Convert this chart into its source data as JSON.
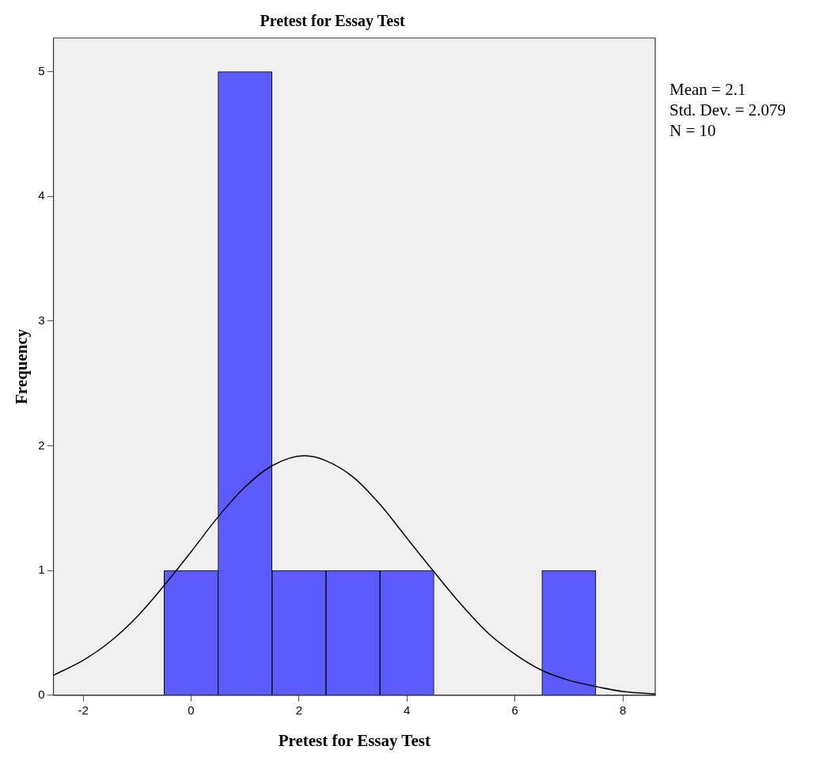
{
  "chart_data": {
    "type": "histogram",
    "title": "Pretest for Essay Test",
    "xlabel": "Pretest for Essay Test",
    "ylabel": "Frequency",
    "bins": [
      -0.5,
      0.5,
      1.5,
      2.5,
      3.5,
      4.5,
      5.5,
      6.5,
      7.5
    ],
    "values": [
      1,
      5,
      1,
      1,
      1,
      0,
      0,
      1
    ],
    "color": "#5b5bff",
    "series": [
      {
        "type": "line",
        "color": "#000000",
        "x": [
          -2.55,
          -2,
          -1.5,
          -1,
          -0.5,
          0,
          0.5,
          1,
          1.5,
          2.1,
          2.5,
          3,
          3.5,
          4,
          4.5,
          5,
          5.5,
          6,
          6.5,
          7,
          7.5,
          8,
          8.6
        ],
        "values": [
          0.16,
          0.28,
          0.43,
          0.63,
          0.88,
          1.15,
          1.43,
          1.67,
          1.84,
          1.92,
          1.88,
          1.75,
          1.53,
          1.26,
          0.99,
          0.73,
          0.5,
          0.33,
          0.2,
          0.12,
          0.07,
          0.03,
          0.01
        ]
      }
    ],
    "xlim": [
      -2.55,
      8.6
    ],
    "ylim": [
      0,
      5.27
    ],
    "xticks": [
      -2,
      0,
      2,
      4,
      6,
      8
    ],
    "yticks": [
      0,
      1,
      2,
      3,
      4,
      5
    ],
    "annotations": [
      "Mean = 2.1",
      "Std. Dev. = 2.079",
      "N = 10"
    ],
    "grid": false,
    "legend": false,
    "marker": "none"
  }
}
